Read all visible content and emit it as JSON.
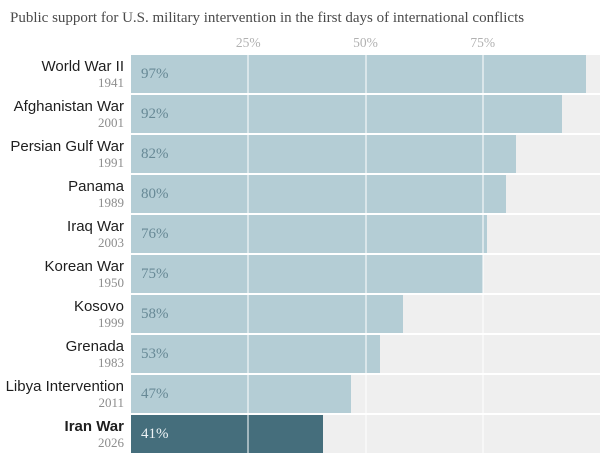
{
  "title": "Public support for U.S. military intervention in the first days of international conflicts",
  "axis": {
    "ticks": [
      {
        "label": "25%",
        "pct": 25
      },
      {
        "label": "50%",
        "pct": 50
      },
      {
        "label": "75%",
        "pct": 75
      }
    ]
  },
  "rows": [
    {
      "name": "World War II",
      "year": "1941",
      "value_label": "97%",
      "pct": 97,
      "highlighted": false
    },
    {
      "name": "Afghanistan War",
      "year": "2001",
      "value_label": "92%",
      "pct": 92,
      "highlighted": false
    },
    {
      "name": "Persian Gulf War",
      "year": "1991",
      "value_label": "82%",
      "pct": 82,
      "highlighted": false
    },
    {
      "name": "Panama",
      "year": "1989",
      "value_label": "80%",
      "pct": 80,
      "highlighted": false
    },
    {
      "name": "Iraq War",
      "year": "2003",
      "value_label": "76%",
      "pct": 76,
      "highlighted": false
    },
    {
      "name": "Korean War",
      "year": "1950",
      "value_label": "75%",
      "pct": 75,
      "highlighted": false
    },
    {
      "name": "Kosovo",
      "year": "1999",
      "value_label": "58%",
      "pct": 58,
      "highlighted": false
    },
    {
      "name": "Grenada",
      "year": "1983",
      "value_label": "53%",
      "pct": 53,
      "highlighted": false
    },
    {
      "name": "Libya Intervention",
      "year": "2011",
      "value_label": "47%",
      "pct": 47,
      "highlighted": false
    },
    {
      "name": "Iran War",
      "year": "2026",
      "value_label": "41%",
      "pct": 41,
      "highlighted": true
    }
  ],
  "colors": {
    "bar": "#b4cdd5",
    "bar_highlight": "#456e7c",
    "track": "#efefef",
    "value_text": "#678996",
    "value_text_highlight": "#eef3f5",
    "name_text": "#1e1e1e",
    "year_text": "#8d8d8d",
    "tick_text": "#b1b1b1",
    "title_text": "#4a4a4a"
  },
  "chart_data": {
    "type": "bar",
    "orientation": "horizontal",
    "title": "Public support for U.S. military intervention in the first days of international conflicts",
    "categories": [
      "World War II",
      "Afghanistan War",
      "Persian Gulf War",
      "Panama",
      "Iraq War",
      "Korean War",
      "Kosovo",
      "Grenada",
      "Libya Intervention",
      "Iran War"
    ],
    "category_years": [
      "1941",
      "2001",
      "1991",
      "1989",
      "2003",
      "1950",
      "1999",
      "1983",
      "2011",
      "2026"
    ],
    "values": [
      97,
      92,
      82,
      80,
      76,
      75,
      58,
      53,
      47,
      41
    ],
    "unit": "%",
    "xlabel": "",
    "ylabel": "",
    "xlim": [
      0,
      100
    ],
    "xticks": [
      25,
      50,
      75
    ],
    "grid": true,
    "legend": false,
    "highlighted_category": "Iran War",
    "data_labels": [
      "97%",
      "92%",
      "82%",
      "80%",
      "76%",
      "75%",
      "58%",
      "53%",
      "47%",
      "41%"
    ]
  }
}
